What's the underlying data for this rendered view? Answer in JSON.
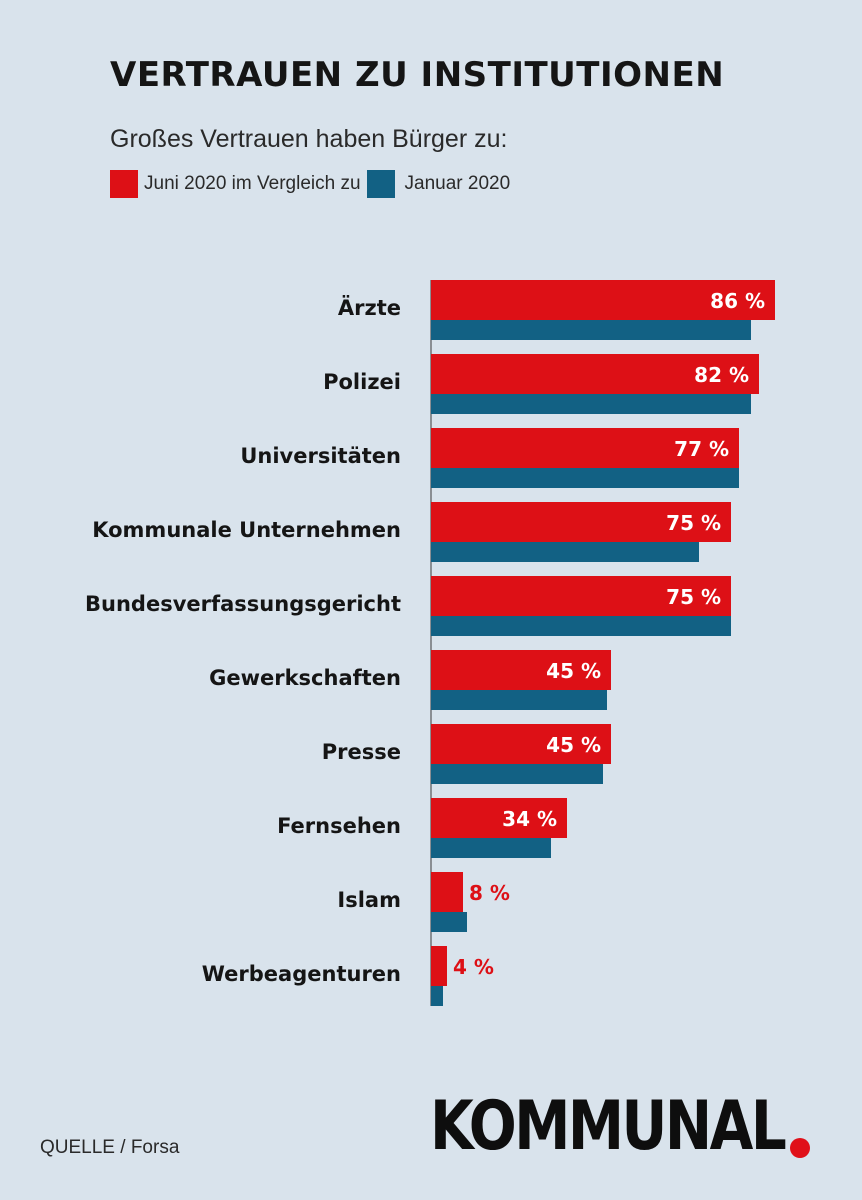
{
  "header": {
    "title": "VERTRAUEN ZU INSTITUTIONEN",
    "subtitle": "Großes Vertrauen haben Bürger zu:"
  },
  "legend": {
    "items": [
      {
        "label": "Juni 2020 im Vergleich zu",
        "color": "#dd1016"
      },
      {
        "label": "Januar 2020",
        "color": "#126184"
      }
    ]
  },
  "chart_data": {
    "type": "bar",
    "orientation": "horizontal",
    "categories": [
      "Ärzte",
      "Polizei",
      "Universitäten",
      "Kommunale Unternehmen",
      "Bundesverfassungsgericht",
      "Gewerkschaften",
      "Presse",
      "Fernsehen",
      "Islam",
      "Werbeagenturen"
    ],
    "series": [
      {
        "name": "Juni 2020 im Vergleich zu",
        "color": "#dd1016",
        "values": [
          86,
          82,
          77,
          75,
          75,
          45,
          45,
          34,
          8,
          4
        ],
        "labels": [
          "86 %",
          "82 %",
          "77 %",
          "75 %",
          "75 %",
          "45 %",
          "45 %",
          "34 %",
          "8 %",
          "4 %"
        ]
      },
      {
        "name": "Januar 2020",
        "color": "#126184",
        "values": [
          80,
          80,
          77,
          67,
          75,
          44,
          43,
          30,
          9,
          3
        ]
      }
    ],
    "xlim": [
      0,
      100
    ],
    "grid": false,
    "legend": "top-left"
  },
  "footer": {
    "source": "QUELLE / Forsa",
    "logo": "KOMMUNAL"
  }
}
